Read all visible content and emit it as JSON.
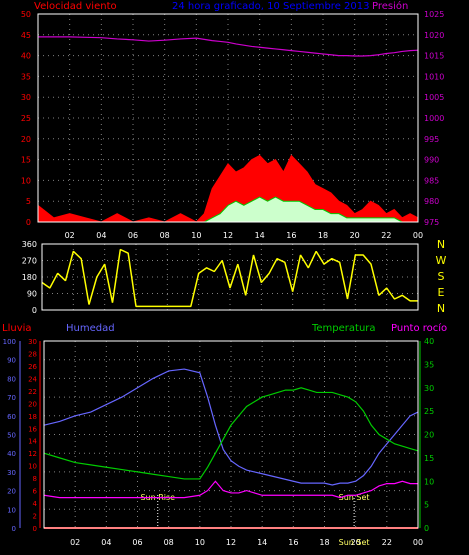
{
  "colors": {
    "background": "#000000",
    "frame": "#ffffff",
    "grid": "#808080",
    "wind_speed": "#ff0000",
    "wind_gust_fill": "#ff0000",
    "wind_avg_fill": "#ccffcc",
    "wind_avg_line": "#00cc00",
    "pressure": "#cc00cc",
    "title": "#0000ff",
    "wind_dir": "#ffff00",
    "rain": "#ff0000",
    "humidity": "#6666ff",
    "temperature": "#00cc00",
    "dew_point": "#ff00ff",
    "sun_label": "#ffff66",
    "compass_label": "#ffff00"
  },
  "header": {
    "wind_label": "Velocidad viento",
    "title": "24 hora graficado, 10 Septiembre 2013",
    "pressure_label": "Presión"
  },
  "lower_header": {
    "rain_label": "Lluvia",
    "humidity_label": "Humedad",
    "temp_label": "Temperatura",
    "dew_label": "Punto rocío"
  },
  "sun": {
    "rise_label": "Sun Rise",
    "set_label": "Sun Set",
    "set_label_bottom": "Sun Set"
  },
  "compass": [
    "N",
    "W",
    "S",
    "E",
    "N"
  ],
  "chart_data": [
    {
      "type": "area",
      "title": "24 hora graficado, 10 Septiembre 2013",
      "x": [
        0,
        1,
        2,
        3,
        4,
        5,
        6,
        7,
        8,
        9,
        10,
        10.5,
        11,
        11.5,
        12,
        12.5,
        13,
        13.5,
        14,
        14.5,
        15,
        15.5,
        16,
        16.5,
        17,
        17.5,
        18,
        18.5,
        19,
        19.5,
        20,
        20.5,
        21,
        21.5,
        22,
        22.5,
        23,
        23.5,
        24
      ],
      "xlim": [
        0,
        24
      ],
      "xticks": [
        "02",
        "04",
        "06",
        "08",
        "10",
        "12",
        "14",
        "16",
        "18",
        "20",
        "22",
        "00"
      ],
      "ylim_left": [
        0,
        50
      ],
      "yticks_left": [
        "0",
        "5",
        "10",
        "15",
        "20",
        "25",
        "30",
        "35",
        "40",
        "45",
        "50"
      ],
      "ylim_right": [
        975,
        1025
      ],
      "yticks_right": [
        "975",
        "980",
        "985",
        "990",
        "995",
        "1000",
        "1005",
        "1010",
        "1015",
        "1020",
        "1025"
      ],
      "series": [
        {
          "name": "Velocidad viento",
          "axis": "left",
          "values": [
            4,
            1,
            2,
            1,
            0,
            2,
            0,
            1,
            0,
            2,
            0,
            2,
            8,
            11,
            14,
            12,
            13,
            15,
            16,
            14,
            15,
            12,
            16,
            14,
            12,
            9,
            8,
            7,
            5,
            4,
            2,
            3,
            5,
            4,
            2,
            3,
            1,
            2,
            1
          ]
        },
        {
          "name": "average",
          "axis": "left",
          "values": [
            0,
            0,
            0,
            0,
            0,
            0,
            0,
            0,
            0,
            0,
            0,
            0,
            1,
            2,
            4,
            5,
            4,
            5,
            6,
            5,
            6,
            5,
            5,
            5,
            4,
            3,
            3,
            2,
            2,
            1,
            1,
            1,
            1,
            1,
            1,
            1,
            0,
            0,
            0
          ]
        },
        {
          "name": "Presión",
          "axis": "right",
          "values": [
            1019.5,
            1019.5,
            1019.5,
            1019.4,
            1019.3,
            1019,
            1018.8,
            1018.5,
            1018.7,
            1019,
            1019.2,
            1018.9,
            1018.6,
            1018.4,
            1018.2,
            1017.8,
            1017.5,
            1017.2,
            1017,
            1016.8,
            1016.6,
            1016.4,
            1016.2,
            1016,
            1015.8,
            1015.6,
            1015.4,
            1015.2,
            1015,
            1015,
            1014.9,
            1014.9,
            1015,
            1015.2,
            1015.5,
            1015.7,
            1016,
            1016.2,
            1016.3
          ]
        }
      ]
    },
    {
      "type": "scatter",
      "title": "",
      "x": [
        0,
        0.5,
        1,
        1.5,
        2,
        2.5,
        3,
        3.5,
        4,
        4.5,
        5,
        5.5,
        6,
        6.5,
        7,
        7.5,
        8,
        8.5,
        9,
        9.5,
        10,
        10.5,
        11,
        11.5,
        12,
        12.5,
        13,
        13.5,
        14,
        14.5,
        15,
        15.5,
        16,
        16.5,
        17,
        17.5,
        18,
        18.5,
        19,
        19.5,
        20,
        20.5,
        21,
        21.5,
        22,
        22.5,
        23,
        23.5,
        24
      ],
      "ylim": [
        0,
        360
      ],
      "yticks": [
        "0",
        "90",
        "180",
        "270",
        "360"
      ],
      "series": [
        {
          "name": "wind direction",
          "values": [
            150,
            120,
            200,
            160,
            320,
            280,
            30,
            180,
            250,
            40,
            330,
            310,
            20,
            20,
            20,
            20,
            20,
            20,
            20,
            20,
            200,
            230,
            210,
            270,
            120,
            250,
            80,
            300,
            150,
            200,
            280,
            260,
            100,
            300,
            230,
            320,
            250,
            280,
            260,
            60,
            300,
            300,
            250,
            80,
            120,
            60,
            80,
            50,
            50
          ]
        }
      ]
    },
    {
      "type": "line",
      "title": "",
      "x": [
        0,
        1,
        2,
        3,
        4,
        5,
        6,
        7,
        8,
        9,
        10,
        10.5,
        11,
        11.5,
        12,
        12.5,
        13,
        13.5,
        14,
        14.5,
        15,
        15.5,
        16,
        16.5,
        17,
        17.5,
        18,
        18.5,
        19,
        19.5,
        20,
        20.5,
        21,
        21.5,
        22,
        22.5,
        23,
        23.5,
        24
      ],
      "xlim": [
        0,
        24
      ],
      "xticks": [
        "02",
        "04",
        "06",
        "08",
        "10",
        "12",
        "14",
        "16",
        "18",
        "20",
        "22",
        "00"
      ],
      "ylim_humidity": [
        0,
        100
      ],
      "yticks_humidity": [
        "0",
        "10",
        "20",
        "30",
        "40",
        "50",
        "60",
        "70",
        "80",
        "90",
        "100"
      ],
      "ylim_rain": [
        0,
        30
      ],
      "yticks_rain": [
        "0",
        "2",
        "4",
        "6",
        "8",
        "10",
        "12",
        "14",
        "16",
        "18",
        "20",
        "22",
        "24",
        "26",
        "28",
        "30"
      ],
      "ylim_temp": [
        0,
        40
      ],
      "yticks_temp": [
        "0",
        "5",
        "10",
        "15",
        "20",
        "25",
        "30",
        "35",
        "40"
      ],
      "series": [
        {
          "name": "Humedad",
          "axis": "humidity",
          "values": [
            55,
            57,
            60,
            62,
            66,
            70,
            75,
            80,
            84,
            85,
            83,
            70,
            55,
            42,
            36,
            33,
            31,
            30,
            29,
            28,
            27,
            26,
            25,
            24,
            24,
            24,
            24,
            23,
            24,
            24,
            25,
            28,
            33,
            40,
            45,
            50,
            55,
            60,
            62
          ]
        },
        {
          "name": "Temperatura",
          "axis": "temp",
          "values": [
            16,
            15,
            14,
            13.5,
            13,
            12.5,
            12,
            11.5,
            11,
            10.5,
            10.5,
            13,
            16,
            19,
            22,
            24,
            26,
            27,
            28,
            28.5,
            29,
            29.5,
            29.5,
            30,
            29.5,
            29,
            29,
            29,
            28.5,
            28,
            27,
            25,
            22,
            20,
            19,
            18,
            17.5,
            17,
            16.5
          ]
        },
        {
          "name": "Punto rocío",
          "axis": "temp",
          "values": [
            7,
            6.5,
            6.5,
            6.5,
            6.5,
            6.5,
            6.5,
            6.5,
            6.5,
            6.5,
            7,
            8,
            10,
            8,
            7.5,
            7.5,
            8,
            7.5,
            7,
            7,
            7,
            7,
            7,
            7,
            7,
            7,
            7,
            7,
            6.5,
            7,
            7,
            7.5,
            8,
            9,
            9.5,
            9.5,
            10,
            9.5,
            9.5
          ]
        },
        {
          "name": "Lluvia",
          "axis": "rain",
          "values": [
            0,
            0,
            0,
            0,
            0,
            0,
            0,
            0,
            0,
            0,
            0,
            0,
            0,
            0,
            0,
            0,
            0,
            0,
            0,
            0,
            0,
            0,
            0,
            0,
            0,
            0,
            0,
            0,
            0,
            0,
            0,
            0,
            0,
            0,
            0,
            0,
            0,
            0,
            0
          ]
        }
      ],
      "sunrise_hour": 7.3,
      "sunset_hour": 19.9
    }
  ]
}
